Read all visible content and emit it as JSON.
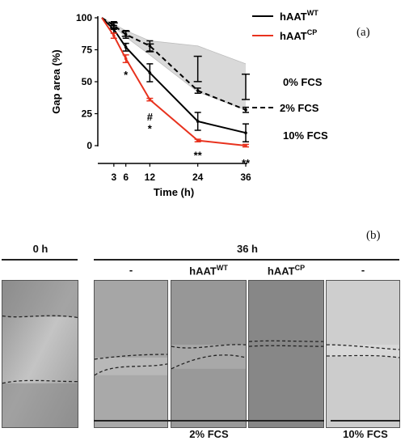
{
  "chart_data": {
    "type": "line",
    "xlabel": "Time (h)",
    "ylabel": "Gap area (%)",
    "x": [
      0,
      3,
      6,
      12,
      24,
      36
    ],
    "xticks": [
      3,
      6,
      12,
      24,
      36
    ],
    "yticks": [
      0,
      25,
      50,
      75,
      100
    ],
    "xlim": [
      0,
      36
    ],
    "ylim": [
      0,
      100
    ],
    "legend_placement": "top-right",
    "legend": [
      {
        "base": "hAAT",
        "sup": "WT",
        "color": "#000000"
      },
      {
        "base": "hAAT",
        "sup": "CP",
        "color": "#e8321e"
      }
    ],
    "series": [
      {
        "group": "hAATWT 0% FCS",
        "color": "#000000",
        "style": "band",
        "upper": [
          100,
          95,
          90,
          82,
          78,
          64
        ],
        "lower": [
          100,
          93,
          85,
          71,
          42,
          28
        ]
      },
      {
        "group": "hAATWT 2% FCS",
        "color": "#000000",
        "style": "dashed",
        "values": [
          100,
          94,
          87,
          78,
          43,
          28
        ],
        "err": [
          0,
          3,
          3,
          4,
          2,
          2
        ]
      },
      {
        "group": "hAATWT 10% FCS",
        "color": "#000000",
        "style": "solid",
        "values": [
          100,
          91,
          77,
          57,
          19,
          10
        ],
        "err": [
          0,
          3,
          3,
          7,
          7,
          7
        ]
      },
      {
        "group": "hAATCP 10% FCS",
        "color": "#e8321e",
        "style": "solid",
        "values": [
          100,
          86,
          68,
          36,
          4,
          0
        ],
        "err": [
          0,
          2,
          3,
          1,
          1,
          1
        ]
      }
    ],
    "band_labels": [
      "0% FCS",
      "2% FCS",
      "10% FCS"
    ],
    "annotations": [
      {
        "x": 6,
        "y": 55,
        "text": "*"
      },
      {
        "x": 12,
        "y": 22,
        "text": "#"
      },
      {
        "x": 12,
        "y": 13,
        "text": "*"
      },
      {
        "x": 24,
        "y": -8,
        "text": "**"
      },
      {
        "x": 36,
        "y": -14,
        "text": "**"
      }
    ]
  },
  "panel_a_tag": "(a)",
  "panel_b_tag": "(b)",
  "panel_b": {
    "time_0": "0 h",
    "time_36": "36 h",
    "columns": [
      {
        "base": "-",
        "sup": ""
      },
      {
        "base": "hAAT",
        "sup": "WT"
      },
      {
        "base": "hAAT",
        "sup": "CP"
      },
      {
        "base": "-",
        "sup": ""
      }
    ],
    "footer_2": "2% FCS",
    "footer_10": "10% FCS"
  }
}
